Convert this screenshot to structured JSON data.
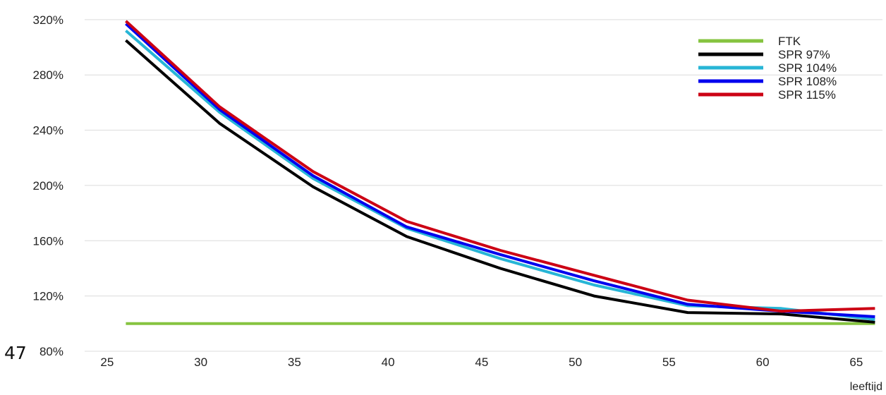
{
  "page_number": "47",
  "chart_data": {
    "type": "line",
    "title": "",
    "xlabel": "leeftijd",
    "ylabel": "",
    "x_ticks": [
      25,
      30,
      35,
      40,
      45,
      50,
      55,
      60,
      65
    ],
    "y_ticks": [
      80,
      120,
      160,
      200,
      240,
      280,
      320
    ],
    "y_tick_labels": [
      "80%",
      "120%",
      "160%",
      "200%",
      "240%",
      "280%",
      "320%"
    ],
    "xlim": [
      23.8,
      66.4
    ],
    "ylim": [
      80,
      324
    ],
    "grid": "horizontal",
    "legend_position": "top-right",
    "x": [
      26,
      31,
      36,
      41,
      46,
      51,
      56,
      61,
      66
    ],
    "series": [
      {
        "name": "FTK",
        "color": "#86c440",
        "values": [
          100,
          100,
          100,
          100,
          100,
          100,
          100,
          100,
          100
        ]
      },
      {
        "name": "SPR 97%",
        "color": "#000000",
        "values": [
          305,
          245,
          199,
          163,
          140,
          120,
          108,
          107,
          101
        ]
      },
      {
        "name": "SPR 104%",
        "color": "#27b5d6",
        "values": [
          312,
          253,
          205,
          169,
          147,
          128,
          113,
          111,
          103
        ]
      },
      {
        "name": "SPR 108%",
        "color": "#0000ee",
        "values": [
          317,
          255,
          207,
          170,
          150,
          131,
          114,
          109,
          105
        ]
      },
      {
        "name": "SPR 115%",
        "color": "#cc0014",
        "values": [
          319,
          257,
          210,
          174,
          153,
          135,
          117,
          109,
          111
        ]
      }
    ]
  }
}
